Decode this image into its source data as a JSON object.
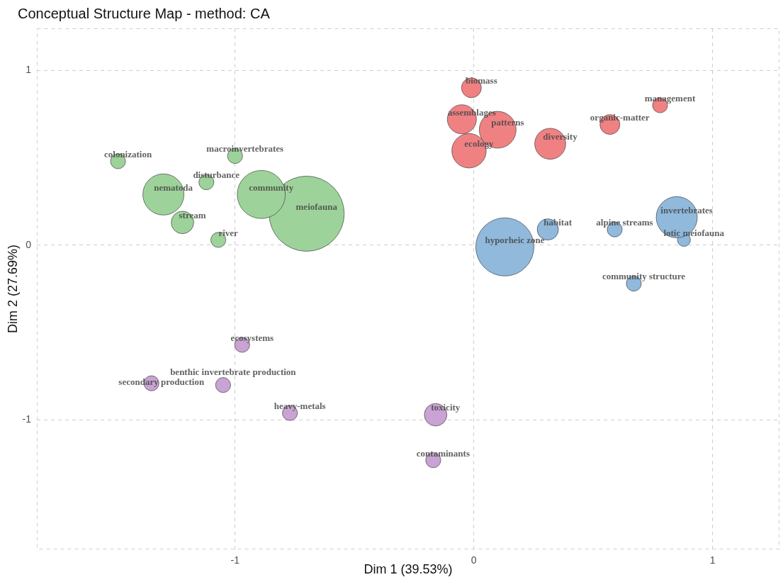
{
  "chart_data": {
    "type": "bubble",
    "title": "Conceptual Structure Map - method: CA",
    "xlabel": "Dim 1 (39.53%)",
    "ylabel": "Dim 2 (27.69%)",
    "xlim": [
      -1.83,
      1.28
    ],
    "ylim": [
      -1.74,
      1.24
    ],
    "xticks": [
      -1,
      0,
      1
    ],
    "yticks": [
      -1,
      0,
      1
    ],
    "grid": true,
    "series": [
      {
        "name": "colonization",
        "color": "#9dd39a",
        "x": [
          -1.49
        ],
        "values": [
          0.48
        ],
        "sizes": [
          0.04
        ]
      },
      {
        "name": "macroinvertebrates",
        "color": "#9dd39a",
        "x": [
          -1.0
        ],
        "values": [
          0.51
        ],
        "sizes": [
          0.04
        ]
      },
      {
        "name": "disturbance",
        "color": "#9dd39a",
        "x": [
          -1.12
        ],
        "values": [
          0.36
        ],
        "sizes": [
          0.04
        ]
      },
      {
        "name": "nematoda",
        "color": "#9dd39a",
        "x": [
          -1.3
        ],
        "values": [
          0.29
        ],
        "sizes": [
          0.3
        ]
      },
      {
        "name": "stream",
        "color": "#9dd39a",
        "x": [
          -1.22
        ],
        "values": [
          0.13
        ],
        "sizes": [
          0.09
        ]
      },
      {
        "name": "river",
        "color": "#9dd39a",
        "x": [
          -1.07
        ],
        "values": [
          0.03
        ],
        "sizes": [
          0.04
        ]
      },
      {
        "name": "community",
        "color": "#9dd39a",
        "x": [
          -0.89
        ],
        "values": [
          0.29
        ],
        "sizes": [
          0.41
        ]
      },
      {
        "name": "meiofauna",
        "color": "#9dd39a",
        "x": [
          -0.7
        ],
        "values": [
          0.18
        ],
        "sizes": [
          1
        ]
      },
      {
        "name": "biomass",
        "color": "#f08183",
        "x": [
          -0.01
        ],
        "values": [
          0.9
        ],
        "sizes": [
          0.07
        ]
      },
      {
        "name": "assemblages",
        "color": "#f08183",
        "x": [
          -0.05
        ],
        "values": [
          0.72
        ],
        "sizes": [
          0.15
        ]
      },
      {
        "name": "patterns",
        "color": "#f08183",
        "x": [
          0.1
        ],
        "values": [
          0.66
        ],
        "sizes": [
          0.24
        ]
      },
      {
        "name": "ecology",
        "color": "#f08183",
        "x": [
          -0.02
        ],
        "values": [
          0.54
        ],
        "sizes": [
          0.21
        ]
      },
      {
        "name": "diversity",
        "color": "#f08183",
        "x": [
          0.32
        ],
        "values": [
          0.58
        ],
        "sizes": [
          0.17
        ]
      },
      {
        "name": "organic-matter",
        "color": "#f08183",
        "x": [
          0.57
        ],
        "values": [
          0.69
        ],
        "sizes": [
          0.07
        ]
      },
      {
        "name": "management",
        "color": "#f08183",
        "x": [
          0.78
        ],
        "values": [
          0.8
        ],
        "sizes": [
          0.04
        ]
      },
      {
        "name": "hyporheic zone",
        "color": "#90b9dc",
        "x": [
          0.13
        ],
        "values": [
          -0.01
        ],
        "sizes": [
          0.6
        ]
      },
      {
        "name": "habitat",
        "color": "#90b9dc",
        "x": [
          0.31
        ],
        "values": [
          0.09
        ],
        "sizes": [
          0.08
        ]
      },
      {
        "name": "alpine streams",
        "color": "#90b9dc",
        "x": [
          0.59
        ],
        "values": [
          0.09
        ],
        "sizes": [
          0.04
        ]
      },
      {
        "name": "invertebrates",
        "color": "#90b9dc",
        "x": [
          0.85
        ],
        "values": [
          0.16
        ],
        "sizes": [
          0.3
        ]
      },
      {
        "name": "lotic meiofauna",
        "color": "#90b9dc",
        "x": [
          0.88
        ],
        "values": [
          0.03
        ],
        "sizes": [
          0.03
        ]
      },
      {
        "name": "community structure",
        "color": "#90b9dc",
        "x": [
          0.67
        ],
        "values": [
          -0.22
        ],
        "sizes": [
          0.04
        ]
      },
      {
        "name": "ecosystems",
        "color": "#c9a3d3",
        "x": [
          -0.97
        ],
        "values": [
          -0.57
        ],
        "sizes": [
          0.04
        ]
      },
      {
        "name": "secondary production",
        "color": "#c9a3d3",
        "x": [
          -1.35
        ],
        "values": [
          -0.79
        ],
        "sizes": [
          0.04
        ]
      },
      {
        "name": "benthic invertebrate production",
        "color": "#c9a3d3",
        "x": [
          -1.05
        ],
        "values": [
          -0.8
        ],
        "sizes": [
          0.04
        ]
      },
      {
        "name": "heavy-metals",
        "color": "#c9a3d3",
        "x": [
          -0.77
        ],
        "values": [
          -0.96
        ],
        "sizes": [
          0.04
        ]
      },
      {
        "name": "toxicity",
        "color": "#c9a3d3",
        "x": [
          -0.16
        ],
        "values": [
          -0.97
        ],
        "sizes": [
          0.09
        ]
      },
      {
        "name": "contaminants",
        "color": "#c9a3d3",
        "x": [
          -0.17
        ],
        "values": [
          -1.23
        ],
        "sizes": [
          0.04
        ]
      }
    ]
  }
}
